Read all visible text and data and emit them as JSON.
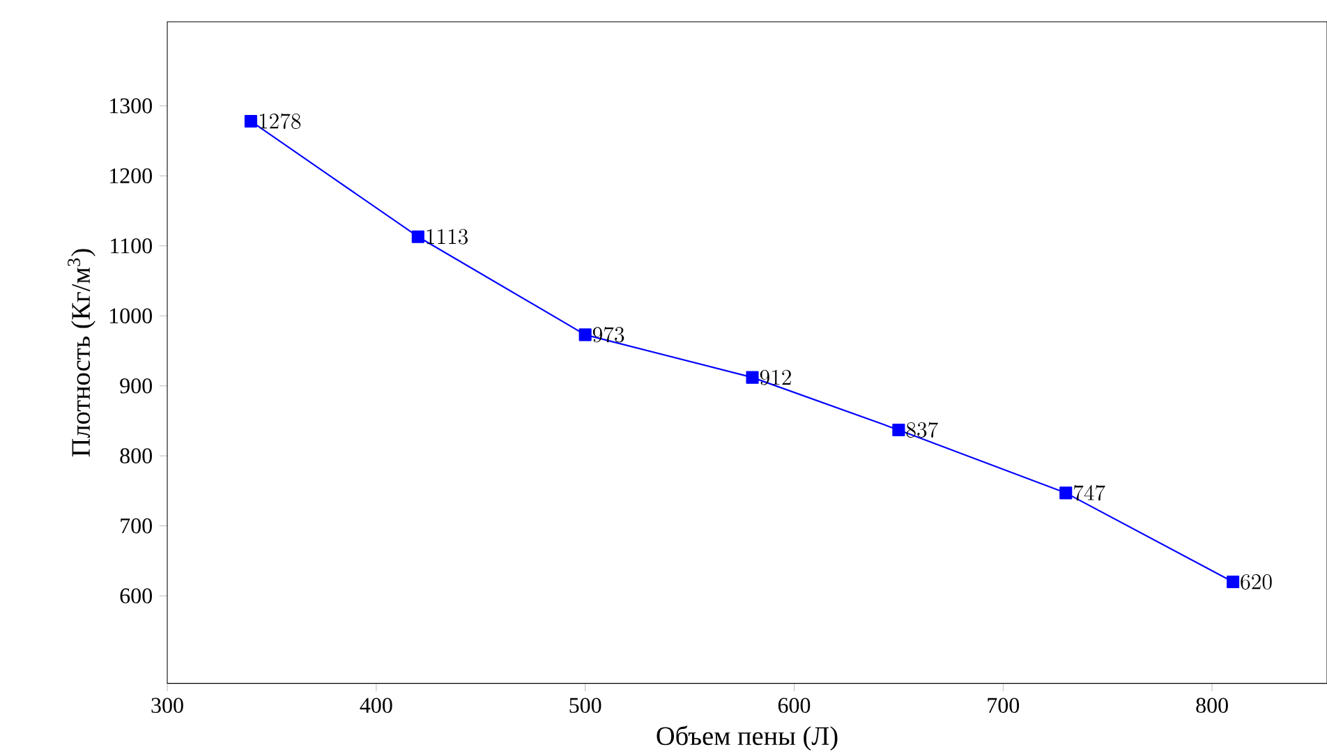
{
  "chart_data": {
    "type": "line",
    "xlabel": "Объем пены (Л)",
    "ylabel": "Плотность (Кг/м$^{3}$)",
    "x": [
      340,
      420,
      500,
      580,
      650,
      730,
      810
    ],
    "series": [
      {
        "color": "#0000ff",
        "values": [
          1278,
          1113,
          973,
          912,
          837,
          747,
          620
        ]
      }
    ],
    "xlim": [
      300,
      855
    ],
    "ylim": [
      475,
      1420
    ],
    "xticks": [
      300,
      400,
      500,
      600,
      700,
      800
    ],
    "yticks": [
      600,
      700,
      800,
      900,
      1000,
      1100,
      1200,
      1300
    ],
    "marker": "square",
    "line_style": "solid",
    "data_labels": true
  }
}
